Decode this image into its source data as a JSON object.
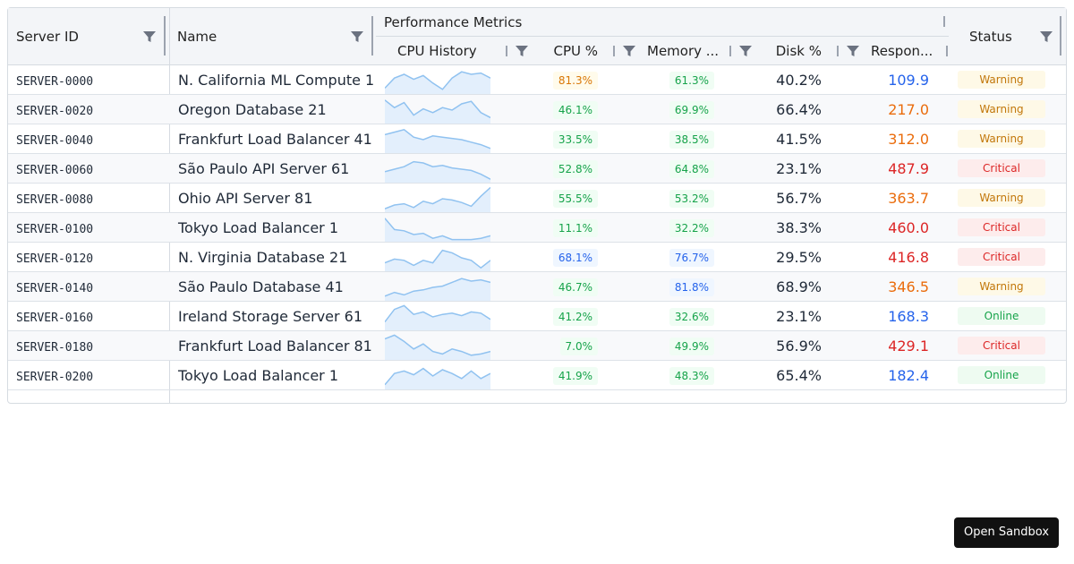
{
  "header": {
    "server_id": "Server ID",
    "name": "Name",
    "group": "Performance Metrics",
    "cpu_history": "CPU History",
    "cpu": "CPU %",
    "memory": "Memory ...",
    "disk": "Disk %",
    "response": "Respon...",
    "status": "Status"
  },
  "table": {
    "rows": [
      {
        "id": "SERVER-0000",
        "name": "N. California ML Compute 1",
        "history": [
          20,
          60,
          75,
          55,
          70,
          40,
          15,
          60,
          85,
          75,
          80,
          60
        ],
        "cpu": "81.3%",
        "cpu_tone": "warning",
        "memory": "61.3%",
        "memory_tone": "ok",
        "disk": "40.2%",
        "response": "109.9",
        "response_tone": "info",
        "status": "Warning",
        "status_tone": "warning"
      },
      {
        "id": "SERVER-0020",
        "name": "Oregon Database 21",
        "history": [
          90,
          60,
          80,
          30,
          55,
          40,
          60,
          50,
          75,
          85,
          40,
          20
        ],
        "cpu": "46.1%",
        "cpu_tone": "ok",
        "memory": "69.9%",
        "memory_tone": "ok",
        "disk": "66.4%",
        "response": "217.0",
        "response_tone": "warning",
        "status": "Warning",
        "status_tone": "warning"
      },
      {
        "id": "SERVER-0040",
        "name": "Frankfurt Load Balancer 41",
        "history": [
          70,
          80,
          90,
          60,
          50,
          65,
          60,
          55,
          50,
          40,
          30,
          15
        ],
        "cpu": "33.5%",
        "cpu_tone": "ok",
        "memory": "38.5%",
        "memory_tone": "ok",
        "disk": "41.5%",
        "response": "312.0",
        "response_tone": "warning",
        "status": "Warning",
        "status_tone": "warning"
      },
      {
        "id": "SERVER-0060",
        "name": "São Paulo API Server 61",
        "history": [
          40,
          50,
          60,
          80,
          75,
          60,
          65,
          55,
          50,
          45,
          30,
          10
        ],
        "cpu": "52.8%",
        "cpu_tone": "ok",
        "memory": "64.8%",
        "memory_tone": "ok",
        "disk": "23.1%",
        "response": "487.9",
        "response_tone": "critical",
        "status": "Critical",
        "status_tone": "critical"
      },
      {
        "id": "SERVER-0080",
        "name": "Ohio API Server 81",
        "history": [
          10,
          25,
          30,
          15,
          40,
          30,
          50,
          45,
          35,
          20,
          60,
          95
        ],
        "cpu": "55.5%",
        "cpu_tone": "ok",
        "memory": "53.2%",
        "memory_tone": "ok",
        "disk": "56.7%",
        "response": "363.7",
        "response_tone": "warning",
        "status": "Warning",
        "status_tone": "warning"
      },
      {
        "id": "SERVER-0100",
        "name": "Tokyo Load Balancer 1",
        "history": [
          90,
          45,
          40,
          25,
          30,
          10,
          20,
          5,
          5,
          5,
          10,
          20
        ],
        "cpu": "11.1%",
        "cpu_tone": "ok",
        "memory": "32.2%",
        "memory_tone": "ok",
        "disk": "38.3%",
        "response": "460.0",
        "response_tone": "critical",
        "status": "Critical",
        "status_tone": "critical"
      },
      {
        "id": "SERVER-0120",
        "name": "N. Virginia Database 21",
        "history": [
          30,
          45,
          40,
          20,
          40,
          30,
          80,
          70,
          50,
          40,
          10,
          40
        ],
        "cpu": "68.1%",
        "cpu_tone": "info",
        "memory": "76.7%",
        "memory_tone": "info",
        "disk": "29.5%",
        "response": "416.8",
        "response_tone": "critical",
        "status": "Critical",
        "status_tone": "critical"
      },
      {
        "id": "SERVER-0140",
        "name": "São Paulo Database 41",
        "history": [
          15,
          30,
          20,
          35,
          40,
          50,
          55,
          70,
          85,
          75,
          80,
          70
        ],
        "cpu": "46.7%",
        "cpu_tone": "ok",
        "memory": "81.8%",
        "memory_tone": "info",
        "disk": "68.9%",
        "response": "346.5",
        "response_tone": "warning",
        "status": "Warning",
        "status_tone": "warning"
      },
      {
        "id": "SERVER-0160",
        "name": "Ireland Storage Server 61",
        "history": [
          30,
          80,
          95,
          60,
          70,
          50,
          60,
          65,
          55,
          70,
          65,
          40
        ],
        "cpu": "41.2%",
        "cpu_tone": "ok",
        "memory": "32.6%",
        "memory_tone": "ok",
        "disk": "23.1%",
        "response": "168.3",
        "response_tone": "info",
        "status": "Online",
        "status_tone": "online"
      },
      {
        "id": "SERVER-0180",
        "name": "Frankfurt Load Balancer 81",
        "history": [
          80,
          95,
          70,
          40,
          60,
          30,
          20,
          40,
          30,
          15,
          20,
          30
        ],
        "cpu": "7.0%",
        "cpu_tone": "ok",
        "memory": "49.9%",
        "memory_tone": "ok",
        "disk": "56.9%",
        "response": "429.1",
        "response_tone": "critical",
        "status": "Critical",
        "status_tone": "critical"
      },
      {
        "id": "SERVER-0200",
        "name": "Tokyo Load Balancer 1",
        "history": [
          15,
          60,
          70,
          55,
          80,
          50,
          75,
          60,
          40,
          70,
          40,
          60
        ],
        "cpu": "41.9%",
        "cpu_tone": "ok",
        "memory": "48.3%",
        "memory_tone": "ok",
        "disk": "65.4%",
        "response": "182.4",
        "response_tone": "info",
        "status": "Online",
        "status_tone": "online"
      }
    ]
  },
  "button": "Open Sandbox"
}
